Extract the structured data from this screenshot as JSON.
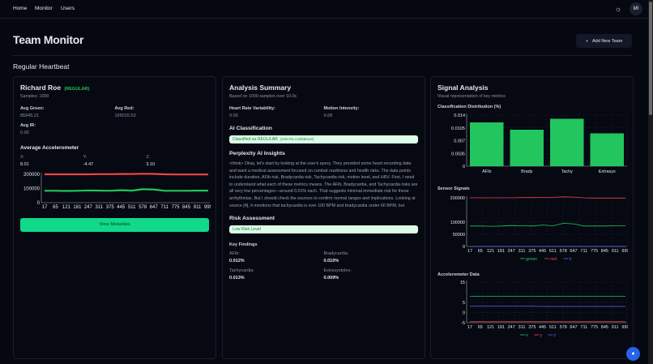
{
  "nav": {
    "items": [
      "Home",
      "Monitor",
      "Users"
    ],
    "avatar": "MI",
    "theme_icon": "sun-icon"
  },
  "page": {
    "title": "Team Monitor",
    "add_button": "Add New Team",
    "section": "Regular Heartbeat"
  },
  "person": {
    "name": "Richard Roe",
    "status": "(REGULAR)",
    "samples": "Samples: 1000",
    "avg_green_label": "Avg Green:",
    "avg_green": "85945.21",
    "avg_red_label": "Avg Red:",
    "avg_red": "195015.53",
    "avg_ir_label": "Avg IR:",
    "avg_ir": "0.00",
    "accel_title": "Average Accelerometer",
    "x_label": "X:",
    "x": "8.01",
    "y_label": "Y:",
    "y": "-4.47",
    "z_label": "Z:",
    "z": "3.10",
    "view_button": "View Metadata"
  },
  "analysis": {
    "title": "Analysis Summary",
    "subtitle": "Based on 1000 samples over 10.0s",
    "hrv_label": "Heart Rate Variability:",
    "hrv": "0.00",
    "motion_label": "Motion Intensity:",
    "motion": "9.68",
    "ai_title": "AI Classification",
    "classification": "Classified as REGULAR",
    "confidence": "(100.0% confidence)",
    "insights_title": "Perplexity AI Insights",
    "insights": "<think> Okay, let's start by looking at the user's query. They provided some heart recording data and want a medical assessment focused on combat readiness and health risks. The data points include duration, AFib risk, Bradycardia risk, Tachycardia risk, motion level, and HRV. First, I need to understand what each of these metrics means. The AFib, Bradycardia, and Tachycardia risks are all very low percentages—around 0.01% each. That suggests minimal immediate risk for these arrhythmias. But I should check the sources to confirm normal ranges and implications. Looking at source [4], it mentions that tachycardia is over 100 BPM and bradycardia under 60 BPM, but",
    "risk_title": "Risk Assessment",
    "risk": "Low Risk Level",
    "findings_title": "Key Findings",
    "findings": [
      {
        "label": "AFib:",
        "value": "0.012%"
      },
      {
        "label": "Bradycardia:",
        "value": "0.010%"
      },
      {
        "label": "Tachycardia:",
        "value": "0.013%"
      },
      {
        "label": "Extrasystoles:",
        "value": "0.009%"
      }
    ]
  },
  "signal": {
    "title": "Signal Analysis",
    "subtitle": "Visual representation of key metrics"
  },
  "colors": {
    "green": "#22c55e",
    "red": "#ef4444",
    "ir": "#6366f1",
    "accent": "#10d98a"
  },
  "chart_data": [
    {
      "id": "mini",
      "type": "line",
      "ylim": [
        0,
        200000
      ],
      "yticks": [
        0,
        100000,
        200000
      ],
      "x": [
        "17",
        "65",
        "121",
        "181",
        "247",
        "311",
        "375",
        "445",
        "511",
        "578",
        "647",
        "711",
        "775",
        "845",
        "911",
        "999"
      ],
      "series": [
        {
          "name": "green",
          "color": "#22c55e",
          "values": [
            84000,
            84000,
            83000,
            84000,
            86000,
            85000,
            84000,
            88000,
            85000,
            95000,
            93000,
            84000,
            84000,
            84000,
            85000,
            85000
          ]
        },
        {
          "name": "red",
          "color": "#ef4444",
          "values": [
            200000,
            200000,
            200000,
            200000,
            200000,
            201000,
            201000,
            202000,
            202000,
            204000,
            203000,
            200000,
            199000,
            199000,
            199000,
            199000
          ]
        }
      ]
    },
    {
      "id": "bars",
      "title": "Classification Distribution (%)",
      "type": "bar",
      "categories": [
        "AFib",
        "Brady",
        "Tachy",
        "Extrasys"
      ],
      "values": [
        0.012,
        0.01,
        0.013,
        0.009
      ],
      "ylim": [
        0,
        0.014
      ],
      "yticks": [
        0,
        0.0035,
        0.007,
        0.0105,
        0.014
      ],
      "color": "#22c55e"
    },
    {
      "id": "sensor",
      "title": "Sensor Signals",
      "type": "line",
      "ylim": [
        0,
        200000
      ],
      "yticks": [
        0,
        50000,
        100000,
        200000
      ],
      "x": [
        "17",
        "65",
        "121",
        "181",
        "247",
        "311",
        "375",
        "445",
        "511",
        "578",
        "647",
        "711",
        "775",
        "845",
        "911",
        "999"
      ],
      "legend": "bottom",
      "series": [
        {
          "name": "green",
          "color": "#22c55e",
          "values": [
            84000,
            84000,
            83000,
            84000,
            86000,
            85000,
            84000,
            88000,
            85000,
            95000,
            93000,
            84000,
            84000,
            84000,
            85000,
            85000
          ]
        },
        {
          "name": "red",
          "color": "#ef4444",
          "values": [
            200000,
            200000,
            200000,
            200000,
            200000,
            201000,
            201000,
            202000,
            202000,
            204000,
            203000,
            200000,
            199000,
            199000,
            199000,
            199000
          ]
        },
        {
          "name": "ir",
          "color": "#6366f1",
          "values": [
            0,
            0,
            0,
            0,
            0,
            0,
            0,
            0,
            0,
            0,
            0,
            0,
            0,
            0,
            0,
            0
          ]
        }
      ]
    },
    {
      "id": "accel",
      "title": "Accelerometer Data",
      "type": "line",
      "ylim": [
        -5,
        15
      ],
      "yticks": [
        -5,
        0,
        5,
        15
      ],
      "x": [
        "17",
        "65",
        "121",
        "181",
        "247",
        "311",
        "375",
        "445",
        "511",
        "578",
        "647",
        "711",
        "775",
        "845",
        "911",
        "999"
      ],
      "legend": "bottom",
      "series": [
        {
          "name": "x",
          "color": "#22c55e",
          "values": [
            8.0,
            8.0,
            8.0,
            8.0,
            8.0,
            8.0,
            8.0,
            8.0,
            8.0,
            8.0,
            8.0,
            8.0,
            8.0,
            8.0,
            8.0,
            8.0
          ]
        },
        {
          "name": "y",
          "color": "#ef4444",
          "values": [
            -4.5,
            -4.5,
            -4.5,
            -4.5,
            -4.5,
            -4.5,
            -4.5,
            -4.5,
            -4.5,
            -4.5,
            -4.5,
            -4.5,
            -4.5,
            -4.5,
            -4.5,
            -4.5
          ]
        },
        {
          "name": "z",
          "color": "#6366f1",
          "values": [
            3.1,
            3.1,
            3.1,
            3.1,
            3.1,
            3.1,
            3.1,
            3.0,
            3.0,
            3.0,
            3.0,
            3.0,
            3.0,
            3.0,
            3.0,
            3.0
          ]
        }
      ]
    }
  ]
}
